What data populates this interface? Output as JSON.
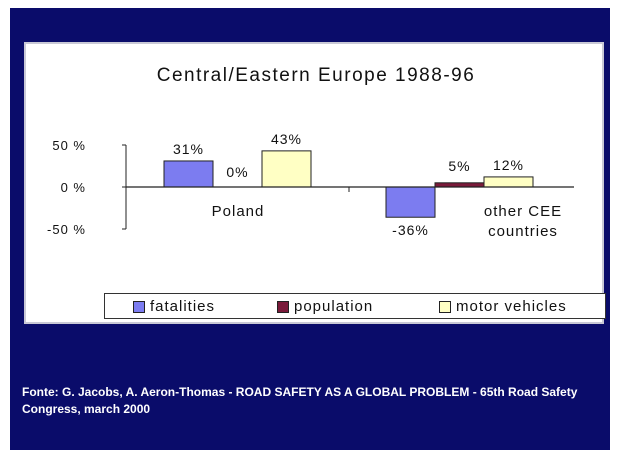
{
  "chart_data": {
    "type": "bar",
    "title": "Central/Eastern Europe 1988-96",
    "categories": [
      "Poland",
      "other CEE\ncountries"
    ],
    "series": [
      {
        "name": "fatalities",
        "values": [
          31,
          -36
        ],
        "labels": [
          "31%",
          "-36%"
        ],
        "color": "#7c7cf0"
      },
      {
        "name": "population",
        "values": [
          0,
          5
        ],
        "labels": [
          "0%",
          "5%"
        ],
        "color": "#7a1a3a"
      },
      {
        "name": "motor vehicles",
        "values": [
          43,
          12
        ],
        "labels": [
          "43%",
          "12%"
        ],
        "color": "#ffffc4"
      }
    ],
    "yticks": [
      "50 %",
      "0 %",
      "-50 %"
    ],
    "ytick_values": [
      50,
      0,
      -50
    ],
    "ylim": [
      -50,
      50
    ],
    "legend_position": "bottom",
    "grid": false
  },
  "footer": {
    "source": "Fonte: G. Jacobs, A. Aeron-Thomas - ROAD SAFETY AS A GLOBAL PROBLEM - 65th Road Safety Congress, march 2000"
  },
  "colors": {
    "background": "#0a0c6a",
    "panel": "#ffffff"
  }
}
